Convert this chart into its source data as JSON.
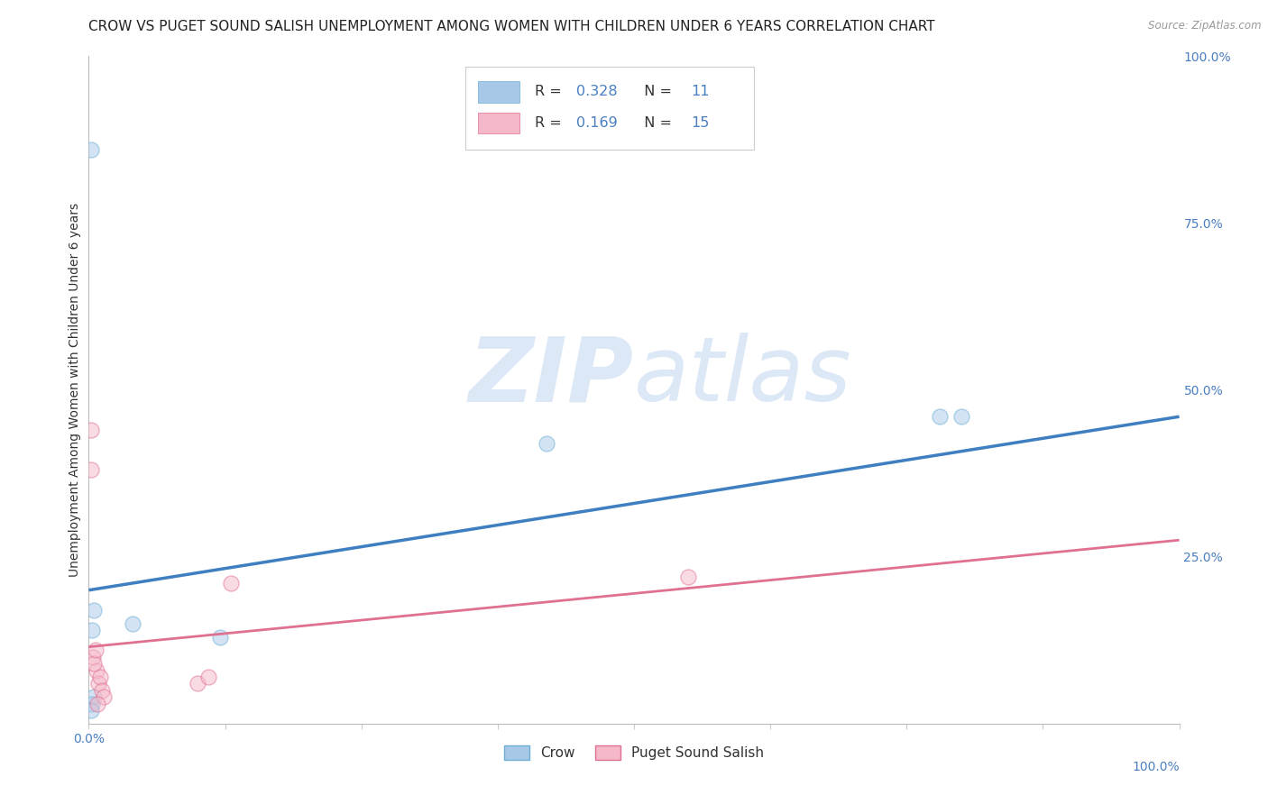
{
  "title": "CROW VS PUGET SOUND SALISH UNEMPLOYMENT AMONG WOMEN WITH CHILDREN UNDER 6 YEARS CORRELATION CHART",
  "source": "Source: ZipAtlas.com",
  "ylabel": "Unemployment Among Women with Children Under 6 years",
  "right_ytick_labels": [
    "100.0%",
    "75.0%",
    "50.0%",
    "25.0%"
  ],
  "right_ytick_positions": [
    1.0,
    0.75,
    0.5,
    0.25
  ],
  "legend_crow_R": "0.328",
  "legend_crow_N": "11",
  "legend_pss_R": "0.169",
  "legend_pss_N": "15",
  "crow_scatter_x": [
    0.002,
    0.003,
    0.005,
    0.04,
    0.12,
    0.005,
    0.42,
    0.78,
    0.8,
    0.003,
    0.002
  ],
  "crow_scatter_y": [
    0.86,
    0.14,
    0.17,
    0.15,
    0.13,
    0.04,
    0.42,
    0.46,
    0.46,
    0.03,
    0.02
  ],
  "pss_scatter_x": [
    0.002,
    0.002,
    0.004,
    0.007,
    0.009,
    0.01,
    0.012,
    0.014,
    0.1,
    0.11,
    0.13,
    0.005,
    0.006,
    0.008,
    0.55
  ],
  "pss_scatter_y": [
    0.44,
    0.38,
    0.1,
    0.08,
    0.06,
    0.07,
    0.05,
    0.04,
    0.06,
    0.07,
    0.21,
    0.09,
    0.11,
    0.03,
    0.22
  ],
  "crow_line_x": [
    0.0,
    1.0
  ],
  "crow_line_y": [
    0.2,
    0.46
  ],
  "pss_line_x": [
    0.0,
    1.0
  ],
  "pss_line_y": [
    0.115,
    0.275
  ],
  "crow_color": "#a8c8e8",
  "crow_edge_color": "#6baed6",
  "pss_color": "#f4b8c8",
  "pss_edge_color": "#e07090",
  "crow_line_color": "#3d7fc1",
  "pss_line_color": "#e07090",
  "background_color": "#ffffff",
  "grid_color": "#d0d0d0",
  "title_fontsize": 11,
  "axis_label_fontsize": 10,
  "tick_fontsize": 10,
  "watermark_zip": "ZIP",
  "watermark_atlas": "atlas",
  "watermark_color": "#dce8f5",
  "scatter_size": 150,
  "scatter_alpha": 0.5,
  "xlim": [
    0.0,
    1.0
  ],
  "ylim": [
    0.0,
    1.0
  ],
  "legend_text_color": "#4a7fc1",
  "legend_label_color": "#333333"
}
